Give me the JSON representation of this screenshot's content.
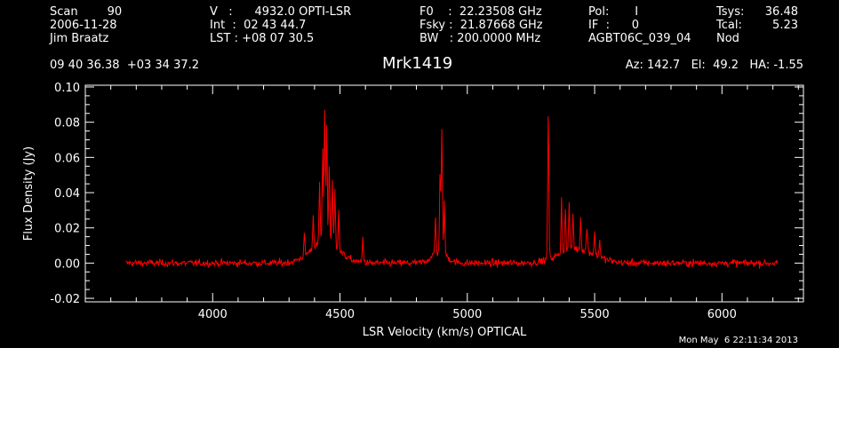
{
  "header": {
    "col1": [
      "Scan        90",
      "2006-11-28",
      "Jim Braatz"
    ],
    "col2": [
      "V   :      4932.0 OPTI-LSR",
      "Int  :  02 43 44.7",
      "LST : +08 07 30.5"
    ],
    "col3": [
      "F0    :  22.23508 GHz",
      "Fsky :  21.87668 GHz",
      "BW   : 200.0000 MHz"
    ],
    "col4": [
      "Pol:       I",
      "IF  :      0",
      "AGBT06C_039_04"
    ],
    "col5": [
      "Tsys:",
      "Tcal:",
      "Nod"
    ],
    "col6": [
      "36.48",
      "5.23",
      ""
    ],
    "coords": "09 40 36.38  +03 34 37.2",
    "source": "Mrk1419",
    "pointing": "Az: 142.7   El:  49.2   HA: -1.55",
    "timestamp": "Mon May  6 22:11:34 2013"
  },
  "chart_data": {
    "type": "line",
    "xlabel": "LSR Velocity (km/s) OPTICAL",
    "ylabel": "Flux Density (Jy)",
    "xlim": [
      3500,
      6320
    ],
    "ylim": [
      -0.022,
      0.101
    ],
    "x_ticks": [
      4000,
      4500,
      5000,
      5500,
      6000
    ],
    "y_ticks": [
      -0.02,
      0.0,
      0.02,
      0.04,
      0.06,
      0.08,
      0.1
    ],
    "x_tick_labels": [
      "4000",
      "4500",
      "5000",
      "5500",
      "6000"
    ],
    "y_tick_labels": [
      "-0.02",
      "0.00",
      "0.02",
      "0.04",
      "0.06",
      "0.08",
      "0.10"
    ],
    "series": [
      {
        "color": "#ff0000",
        "x_range": [
          3660,
          6220
        ],
        "baseline": 0.0,
        "noise_rms": 0.0017,
        "broad_features": [
          {
            "center": 4440,
            "width": 55,
            "amp": 0.012
          },
          {
            "center": 4890,
            "width": 30,
            "amp": 0.006
          },
          {
            "center": 5430,
            "width": 70,
            "amp": 0.008
          }
        ],
        "peaks": [
          {
            "x": 4360,
            "y": 0.012
          },
          {
            "x": 4395,
            "y": 0.018
          },
          {
            "x": 4420,
            "y": 0.035
          },
          {
            "x": 4432,
            "y": 0.052
          },
          {
            "x": 4440,
            "y": 0.076
          },
          {
            "x": 4448,
            "y": 0.068
          },
          {
            "x": 4458,
            "y": 0.045
          },
          {
            "x": 4470,
            "y": 0.038
          },
          {
            "x": 4480,
            "y": 0.032
          },
          {
            "x": 4495,
            "y": 0.024
          },
          {
            "x": 4590,
            "y": 0.015
          },
          {
            "x": 4875,
            "y": 0.02
          },
          {
            "x": 4893,
            "y": 0.045
          },
          {
            "x": 4900,
            "y": 0.069
          },
          {
            "x": 4910,
            "y": 0.03
          },
          {
            "x": 5318,
            "y": 0.084
          },
          {
            "x": 5370,
            "y": 0.03
          },
          {
            "x": 5385,
            "y": 0.024
          },
          {
            "x": 5400,
            "y": 0.026
          },
          {
            "x": 5415,
            "y": 0.02
          },
          {
            "x": 5445,
            "y": 0.018
          },
          {
            "x": 5470,
            "y": 0.014
          },
          {
            "x": 5500,
            "y": 0.012
          },
          {
            "x": 5520,
            "y": 0.01
          }
        ]
      }
    ]
  }
}
